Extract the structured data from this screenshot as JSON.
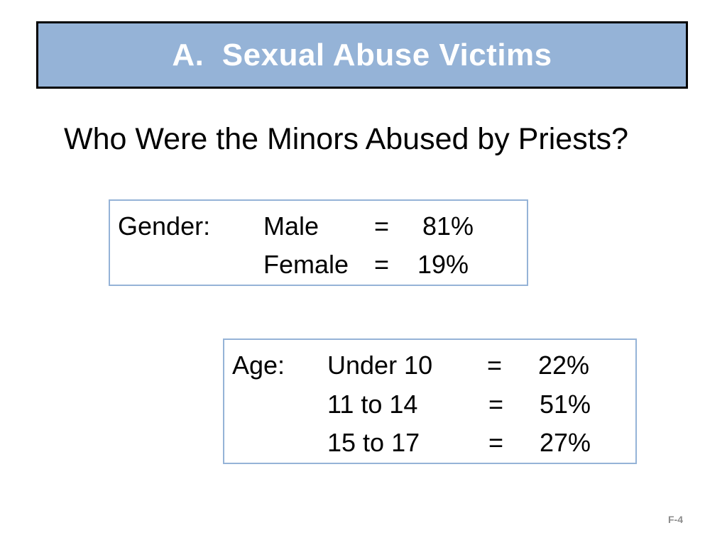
{
  "slide": {
    "title": "A.  Sexual Abuse Victims",
    "subtitle": "Who Were the Minors Abused by Priests?",
    "footer": "F-4"
  },
  "gender": {
    "label": "Gender:",
    "rows": [
      {
        "category": "Male",
        "eq": "=",
        "value": "81%"
      },
      {
        "category": "Female",
        "eq": "=",
        "value": "19%"
      }
    ]
  },
  "age": {
    "label": "Age:",
    "rows": [
      {
        "category": "Under 10",
        "eq": "=",
        "value": "22%"
      },
      {
        "category": "11 to 14",
        "eq": "=",
        "value": "51%"
      },
      {
        "category": "15 to 17",
        "eq": "=",
        "value": "27%"
      }
    ]
  },
  "colors": {
    "title_bg": "#95b3d7",
    "box_border": "#95b3d7",
    "footer_text": "#8c8c8c"
  }
}
